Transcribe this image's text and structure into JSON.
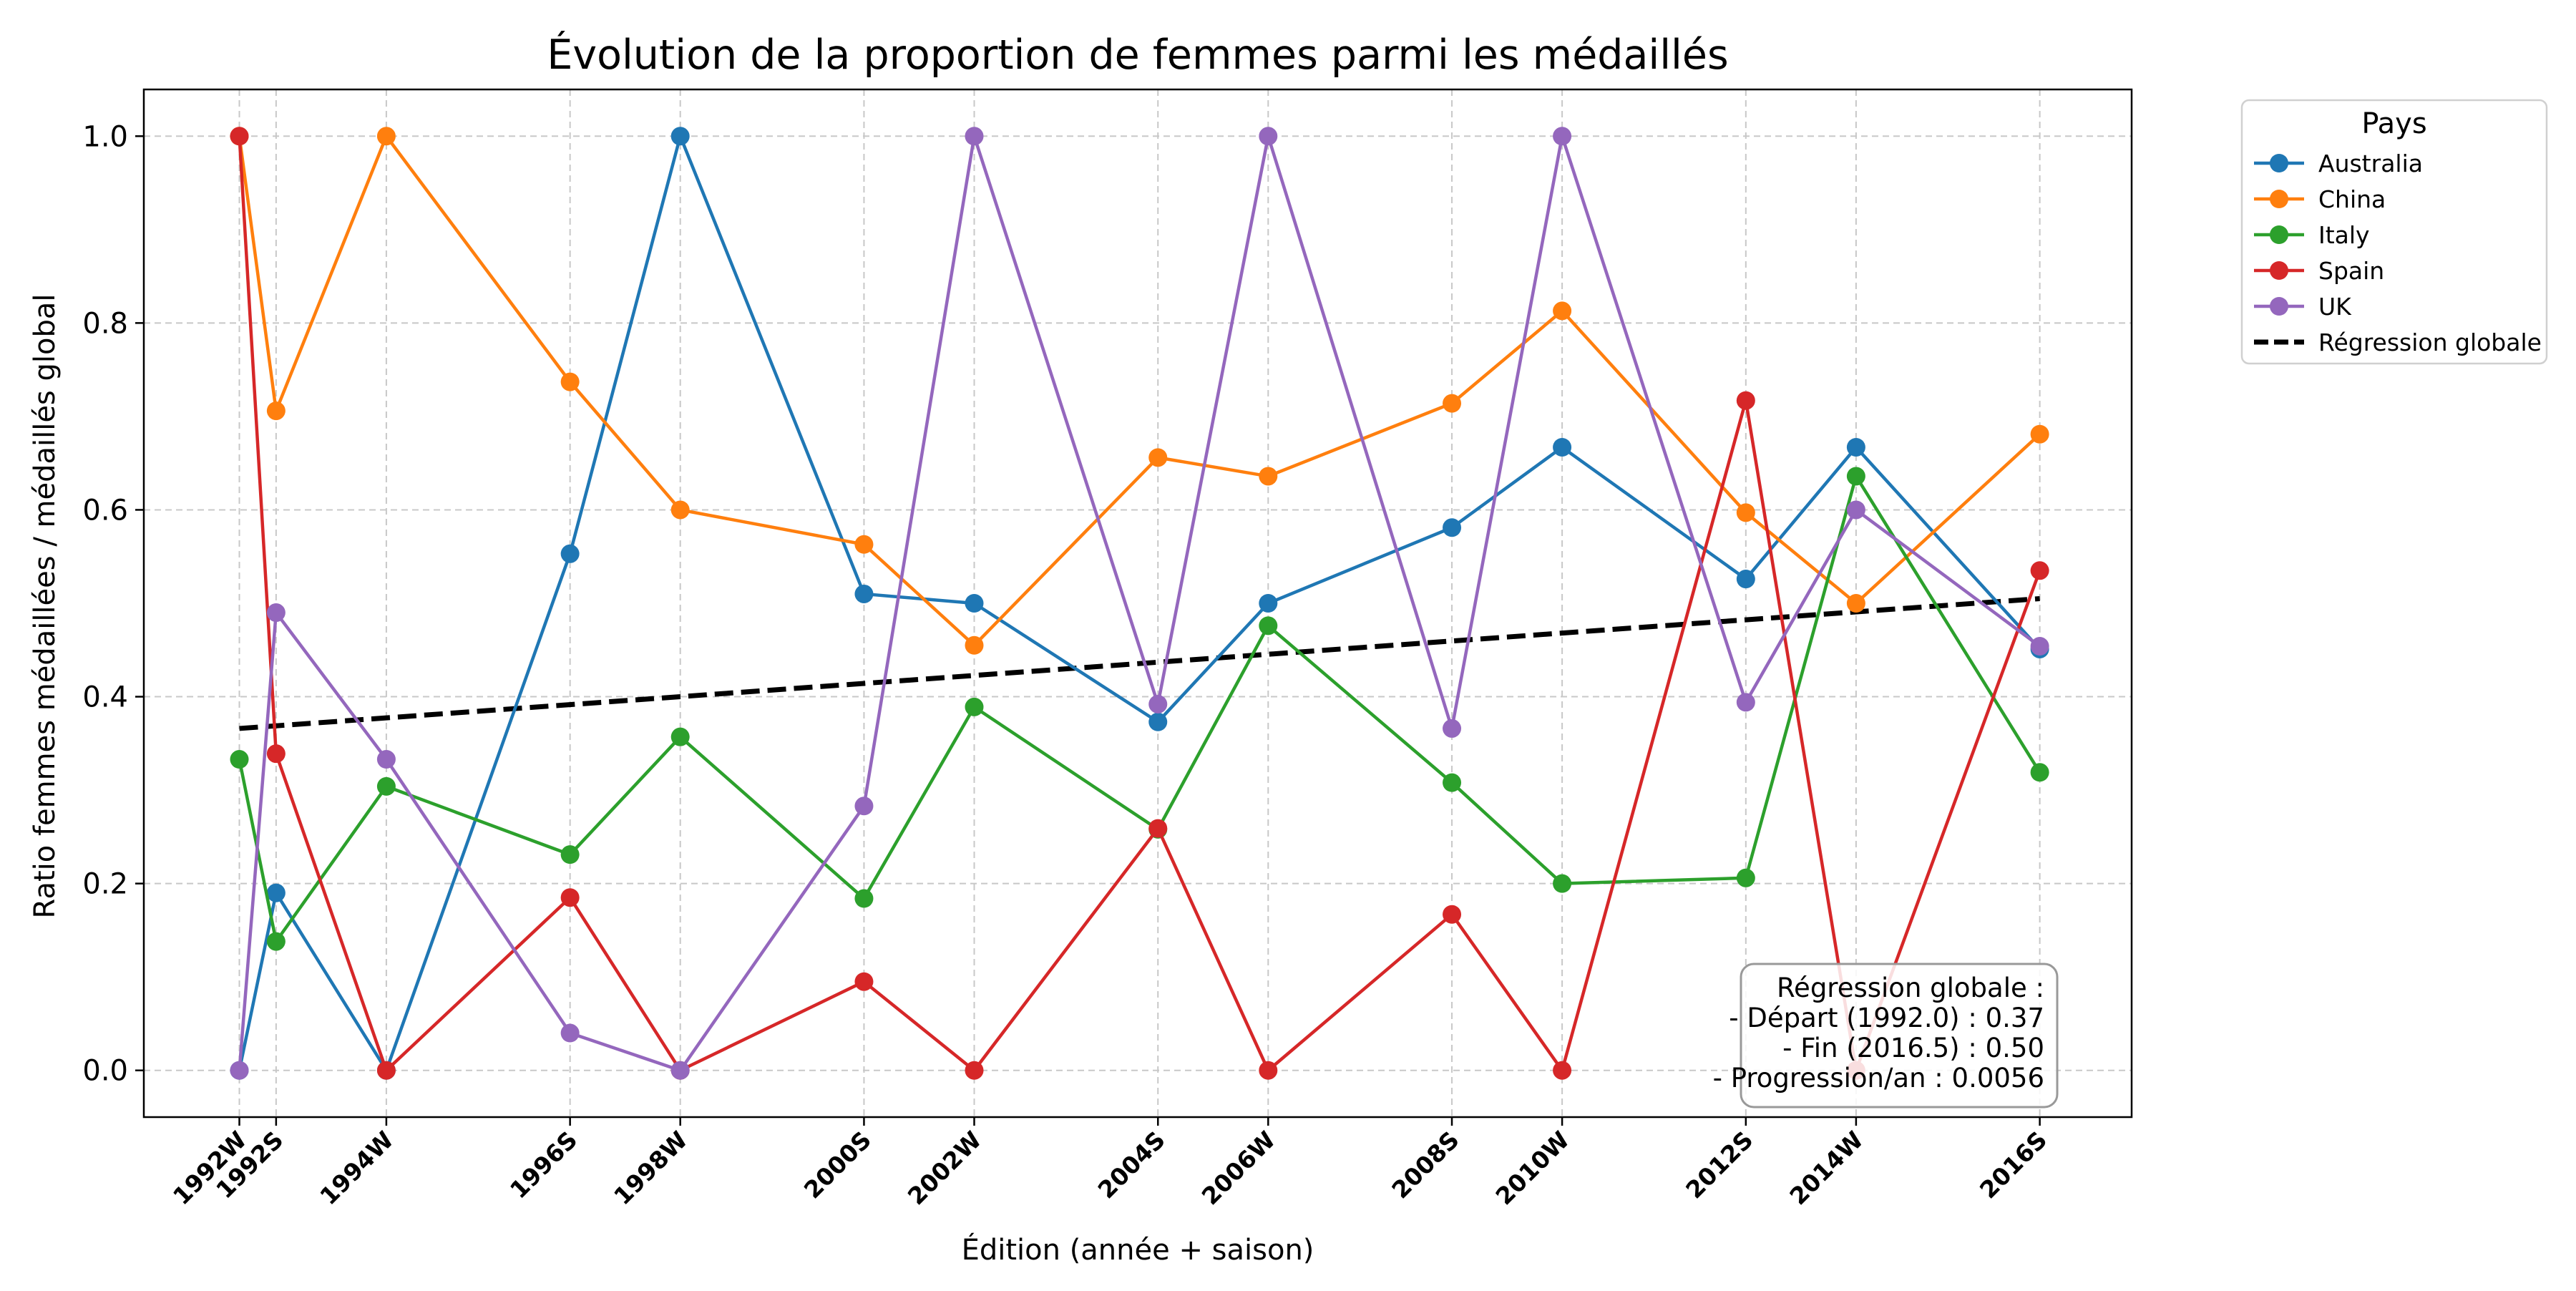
{
  "chart_data": {
    "type": "line",
    "title": "Évolution de la proportion de femmes parmi les médaillés",
    "xlabel": "Édition (année + saison)",
    "ylabel": "Ratio femmes médaillées / médaillés global",
    "x": [
      1992.0,
      1992.5,
      1994.0,
      1996.5,
      1998.0,
      2000.5,
      2002.0,
      2004.5,
      2006.0,
      2008.5,
      2010.0,
      2012.5,
      2014.0,
      2016.5
    ],
    "categories": [
      "1992W",
      "1992S",
      "1994W",
      "1996S",
      "1998W",
      "2000S",
      "2002W",
      "2004S",
      "2006W",
      "2008S",
      "2010W",
      "2012S",
      "2014W",
      "2016S"
    ],
    "xlim": [
      1990.7,
      2017.75
    ],
    "ylim": [
      -0.05,
      1.05
    ],
    "yticks": [
      "0.0",
      "0.2",
      "0.4",
      "0.6",
      "0.8",
      "1.0"
    ],
    "grid": true,
    "legend": {
      "title": "Pays",
      "placement": "outside-upper-right"
    },
    "series": [
      {
        "name": "Australia",
        "color": "#1f77b4",
        "values": [
          0.0,
          0.19,
          0.0,
          0.553,
          1.0,
          0.51,
          0.5,
          0.373,
          0.5,
          0.581,
          0.667,
          0.526,
          0.667,
          0.451
        ]
      },
      {
        "name": "China",
        "color": "#ff7f0e",
        "values": [
          1.0,
          0.706,
          1.0,
          0.737,
          0.6,
          0.563,
          0.455,
          0.656,
          0.636,
          0.714,
          0.813,
          0.597,
          0.5,
          0.681
        ]
      },
      {
        "name": "Italy",
        "color": "#2ca02c",
        "values": [
          0.333,
          0.138,
          0.304,
          0.231,
          0.357,
          0.184,
          0.389,
          0.258,
          0.476,
          0.308,
          0.2,
          0.206,
          0.636,
          0.319
        ]
      },
      {
        "name": "Spain",
        "color": "#d62728",
        "values": [
          1.0,
          0.339,
          0.0,
          0.185,
          0.0,
          0.095,
          0.0,
          0.259,
          0.0,
          0.167,
          0.0,
          0.717,
          0.0,
          0.535
        ]
      },
      {
        "name": "UK",
        "color": "#9467bd",
        "values": [
          0.0,
          0.49,
          0.333,
          0.04,
          0.0,
          0.283,
          1.0,
          0.392,
          1.0,
          0.366,
          1.0,
          0.394,
          0.6,
          0.454
        ]
      }
    ],
    "regression": {
      "name": "Régression globale",
      "color": "#000000",
      "x": [
        1992.0,
        2016.5
      ],
      "y": [
        0.366,
        0.505
      ]
    },
    "annotation": [
      "Régression globale :",
      "- Départ (1992.0) : 0.37",
      "- Fin (2016.5) : 0.50",
      "- Progression/an : 0.0056"
    ]
  }
}
